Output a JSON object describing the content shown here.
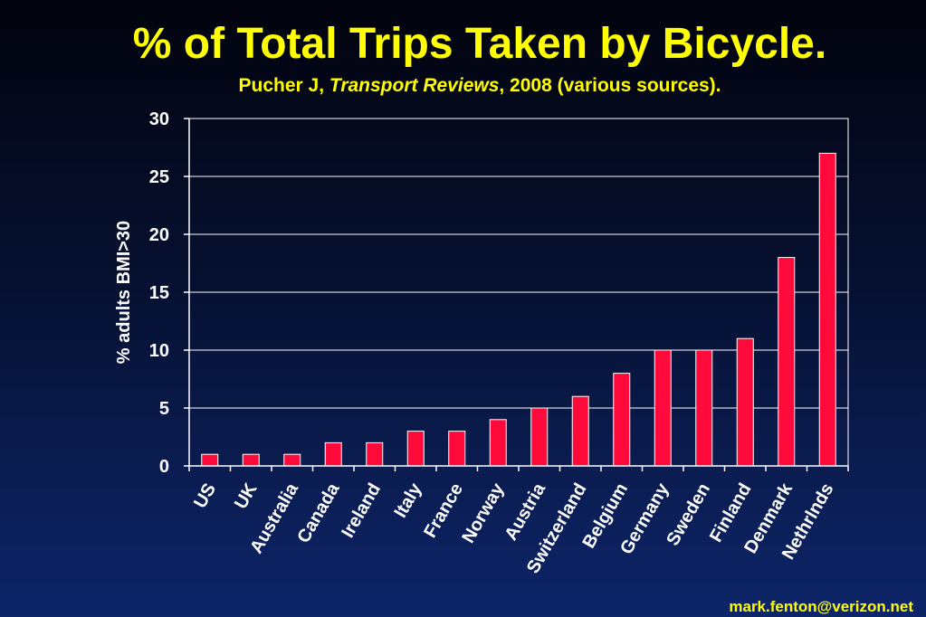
{
  "title": "% of Total Trips Taken by Bicycle.",
  "subtitle": {
    "prefix": "Pucher J, ",
    "journal": "Transport Reviews",
    "suffix": ", 2008 (various sources)."
  },
  "credit": "mark.fenton@verizon.net",
  "colors": {
    "bar": "#ff0a3a",
    "bar_outline": "#ffffff",
    "plot_background": "#ffffff",
    "text": "#ffffff",
    "title": "#ffff00"
  },
  "chart_data": {
    "type": "bar",
    "ylabel": "% adults BMI>30",
    "xlabel": "",
    "ylim": [
      0,
      30
    ],
    "yticks": [
      0,
      5,
      10,
      15,
      20,
      25,
      30
    ],
    "grid": true,
    "legend": "none",
    "categories": [
      "US",
      "UK",
      "Australia",
      "Canada",
      "Ireland",
      "Italy",
      "France",
      "Norway",
      "Austria",
      "Switzerland",
      "Belgium",
      "Germany",
      "Sweden",
      "Finland",
      "Denmark",
      "Nethrlnds"
    ],
    "values": [
      1,
      1,
      1,
      2,
      2,
      3,
      3,
      4,
      5,
      6,
      8,
      10,
      10,
      11,
      18,
      27
    ]
  }
}
